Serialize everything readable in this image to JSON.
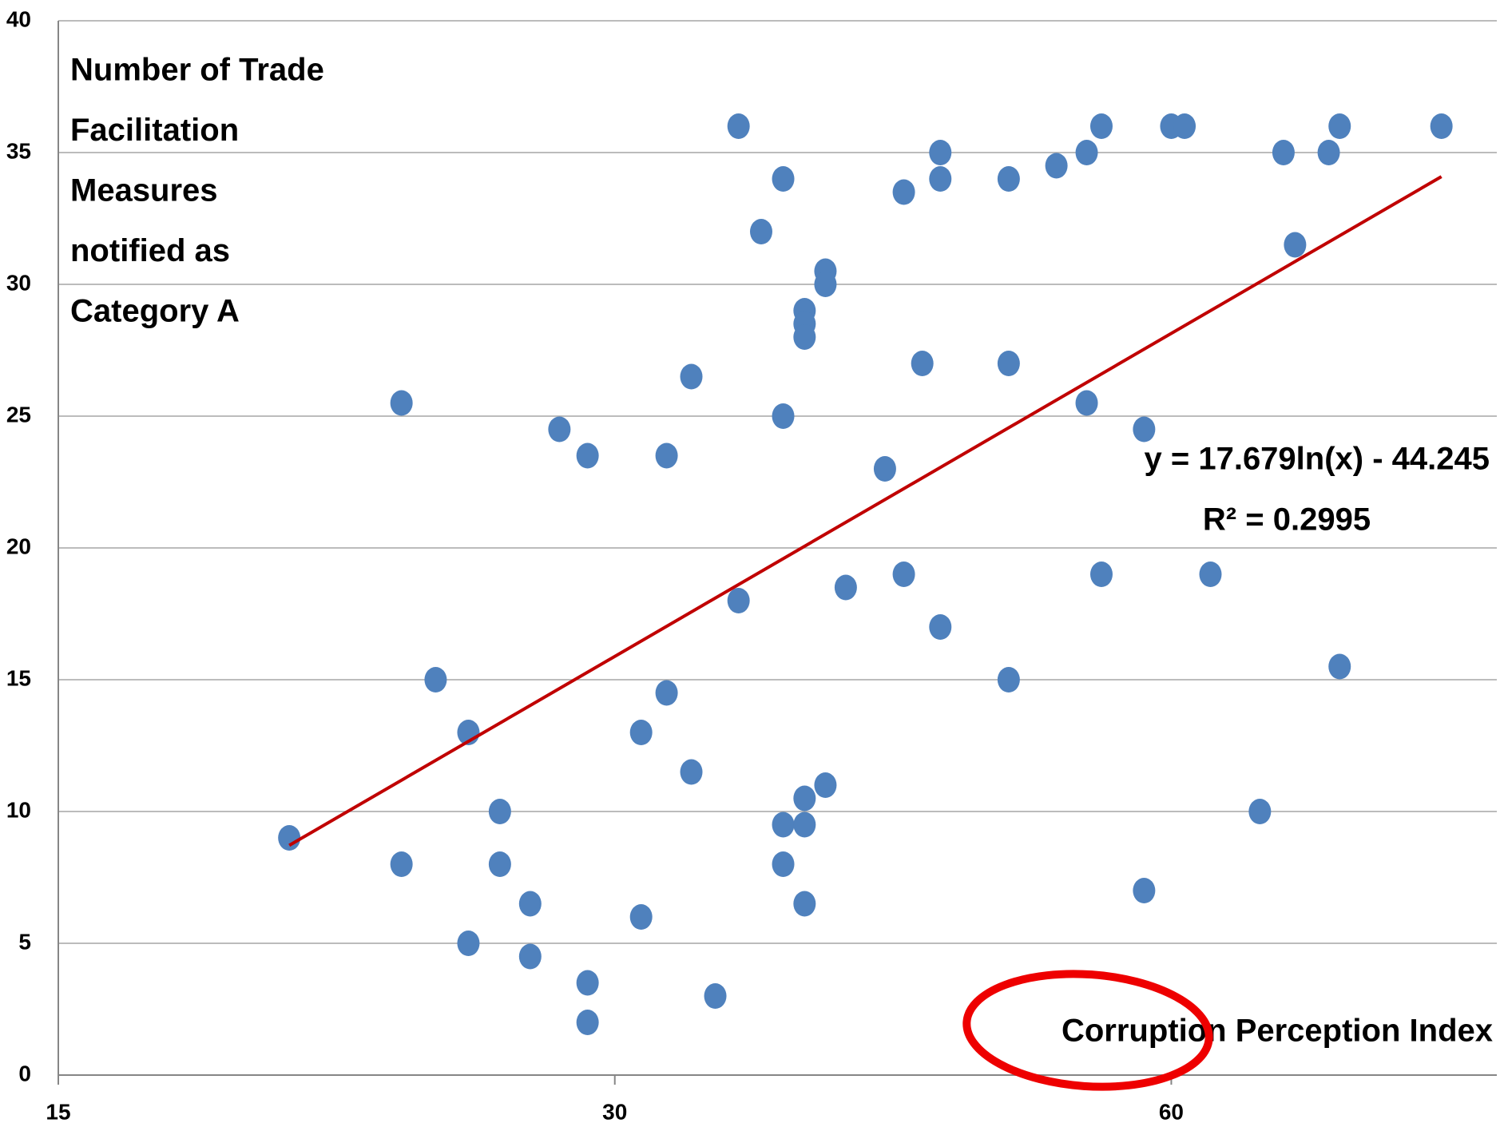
{
  "chart_data": {
    "type": "scatter",
    "y_label_lines": [
      "Number of Trade",
      "Facilitation",
      "Measures",
      "notified as",
      "Category A"
    ],
    "x_label": "Corruption Perception Index",
    "x": [
      20,
      23,
      23,
      24,
      25,
      25,
      26,
      26,
      27,
      27,
      28,
      29,
      29,
      29,
      31,
      31,
      32,
      32,
      33,
      33,
      34,
      35,
      35,
      36,
      37,
      37,
      37,
      37,
      38,
      38,
      38,
      38,
      38,
      38,
      39,
      39,
      39,
      40,
      42,
      43,
      43,
      44,
      45,
      45,
      45,
      49,
      49,
      49,
      52,
      54,
      54,
      55,
      55,
      58,
      58,
      60,
      61,
      63,
      67,
      69,
      70,
      73,
      74,
      74,
      84
    ],
    "values": [
      9,
      25.5,
      8,
      15,
      13,
      5,
      10,
      8,
      6.5,
      4.5,
      24.5,
      23.5,
      3.5,
      2,
      13,
      6,
      23.5,
      14.5,
      26.5,
      11.5,
      3,
      36,
      18,
      32,
      34,
      25,
      9.5,
      8,
      29,
      28.5,
      28,
      10.5,
      9.5,
      6.5,
      30.5,
      30,
      11,
      18.5,
      23,
      33.5,
      19,
      27,
      35,
      34,
      17,
      34,
      27,
      15,
      34.5,
      35,
      25.5,
      36,
      19,
      24.5,
      7,
      36,
      36,
      19,
      10,
      35,
      31.5,
      35,
      36,
      15.5,
      36
    ],
    "color": "#4f81bd",
    "xscale": "log",
    "xlim": [
      15,
      90
    ],
    "xticks": [
      15,
      30,
      60
    ],
    "ylim": [
      0,
      40
    ],
    "yticks": [
      0,
      5,
      10,
      15,
      20,
      25,
      30,
      35,
      40
    ],
    "grid": true,
    "trendline": {
      "kind": "log",
      "a": 17.679,
      "b": -44.245,
      "r_squared": 0.2995,
      "color": "#c00000",
      "equation": "y = 17.679ln(x) - 44.245",
      "r_squared_label": "R² = 0.2995"
    }
  }
}
